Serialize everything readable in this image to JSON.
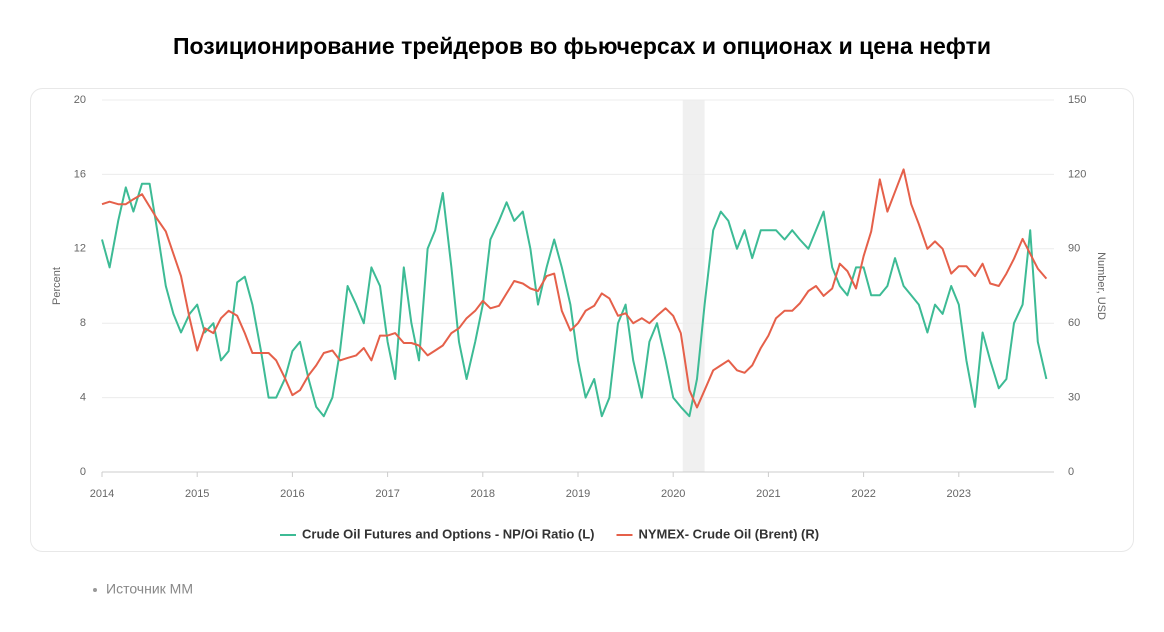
{
  "chart_data": {
    "type": "line",
    "title": "Позиционирование трейдеров во фьючерсах и опционах и цена нефти",
    "ylabel": "Percent",
    "y2label": "Number, USD",
    "source": "Источник MM",
    "xlim": [
      2014,
      2024
    ],
    "xticks": [
      2014,
      2015,
      2016,
      2017,
      2018,
      2019,
      2020,
      2021,
      2022,
      2023
    ],
    "ylim": [
      0,
      20
    ],
    "yticks": [
      0,
      4,
      8,
      12,
      16,
      20
    ],
    "y2lim": [
      0,
      150
    ],
    "y2ticks": [
      0,
      30,
      60,
      90,
      120,
      150
    ],
    "grid": true,
    "legend": "bottom",
    "shaded_region": [
      2020.1,
      2020.33
    ],
    "x": [
      2014.0,
      2014.08,
      2014.17,
      2014.25,
      2014.33,
      2014.42,
      2014.5,
      2014.58,
      2014.67,
      2014.75,
      2014.83,
      2014.92,
      2015.0,
      2015.08,
      2015.17,
      2015.25,
      2015.33,
      2015.42,
      2015.5,
      2015.58,
      2015.67,
      2015.75,
      2015.83,
      2015.92,
      2016.0,
      2016.08,
      2016.17,
      2016.25,
      2016.33,
      2016.42,
      2016.5,
      2016.58,
      2016.67,
      2016.75,
      2016.83,
      2016.92,
      2017.0,
      2017.08,
      2017.17,
      2017.25,
      2017.33,
      2017.42,
      2017.5,
      2017.58,
      2017.67,
      2017.75,
      2017.83,
      2017.92,
      2018.0,
      2018.08,
      2018.17,
      2018.25,
      2018.33,
      2018.42,
      2018.5,
      2018.58,
      2018.67,
      2018.75,
      2018.83,
      2018.92,
      2019.0,
      2019.08,
      2019.17,
      2019.25,
      2019.33,
      2019.42,
      2019.5,
      2019.58,
      2019.67,
      2019.75,
      2019.83,
      2019.92,
      2020.0,
      2020.08,
      2020.17,
      2020.25,
      2020.33,
      2020.42,
      2020.5,
      2020.58,
      2020.67,
      2020.75,
      2020.83,
      2020.92,
      2021.0,
      2021.08,
      2021.17,
      2021.25,
      2021.33,
      2021.42,
      2021.5,
      2021.58,
      2021.67,
      2021.75,
      2021.83,
      2021.92,
      2022.0,
      2022.08,
      2022.17,
      2022.25,
      2022.33,
      2022.42,
      2022.5,
      2022.58,
      2022.67,
      2022.75,
      2022.83,
      2022.92,
      2023.0,
      2023.08,
      2023.17,
      2023.25,
      2023.33,
      2023.42,
      2023.5,
      2023.58,
      2023.67,
      2023.75,
      2023.83,
      2023.92
    ],
    "series": [
      {
        "name": "Crude Oil Futures and Options - NP/Oi Ratio (L)",
        "color": "#3dbb95",
        "axis": "y",
        "values": [
          12.5,
          11,
          13.5,
          15.3,
          14,
          15.5,
          15.5,
          13,
          10,
          8.5,
          7.5,
          8.5,
          9,
          7.5,
          8,
          6,
          6.5,
          10.2,
          10.5,
          9,
          6.5,
          4,
          4,
          5,
          6.5,
          7,
          5,
          3.5,
          3,
          4,
          6.5,
          10,
          9,
          8,
          11,
          10,
          7,
          5,
          11,
          8,
          6,
          12,
          13,
          15,
          11,
          7,
          5,
          7,
          9,
          12.5,
          13.5,
          14.5,
          13.5,
          14,
          12,
          9,
          11,
          12.5,
          11,
          9,
          6,
          4,
          5,
          3,
          4,
          8,
          9,
          6,
          4,
          7,
          8,
          6,
          4,
          3.5,
          3,
          5,
          9,
          13,
          14,
          13.5,
          12,
          13,
          11.5,
          13,
          13,
          13,
          12.5,
          13,
          12.5,
          12,
          13,
          14,
          11,
          10,
          9.5,
          11,
          11,
          9.5,
          9.5,
          10,
          11.5,
          10,
          9.5,
          9,
          7.5,
          9,
          8.5,
          10,
          9,
          6,
          3.5,
          7.5,
          6,
          4.5,
          5,
          8,
          9,
          13,
          7,
          5
        ]
      },
      {
        "name": "NYMEX- Crude Oil (Brent) (R)",
        "color": "#e5604a",
        "axis": "y2",
        "values": [
          108,
          109,
          108,
          108,
          110,
          112,
          107,
          102,
          97,
          88,
          79,
          62,
          49,
          58,
          56,
          62,
          65,
          63,
          56,
          48,
          48,
          48,
          45,
          38,
          31,
          33,
          39,
          43,
          48,
          49,
          45,
          46,
          47,
          50,
          45,
          55,
          55,
          56,
          52,
          52,
          51,
          47,
          49,
          51,
          56,
          58,
          62,
          65,
          69,
          66,
          67,
          72,
          77,
          76,
          74,
          73,
          79,
          80,
          65,
          57,
          60,
          65,
          67,
          72,
          70,
          63,
          64,
          60,
          62,
          60,
          63,
          66,
          63,
          56,
          33,
          26,
          33,
          41,
          43,
          45,
          41,
          40,
          43,
          50,
          55,
          62,
          65,
          65,
          68,
          73,
          75,
          71,
          74,
          84,
          81,
          74,
          87,
          97,
          118,
          105,
          113,
          122,
          108,
          100,
          90,
          93,
          90,
          80,
          83,
          83,
          79,
          84,
          76,
          75,
          80,
          86,
          94,
          88,
          82,
          78
        ]
      }
    ]
  }
}
